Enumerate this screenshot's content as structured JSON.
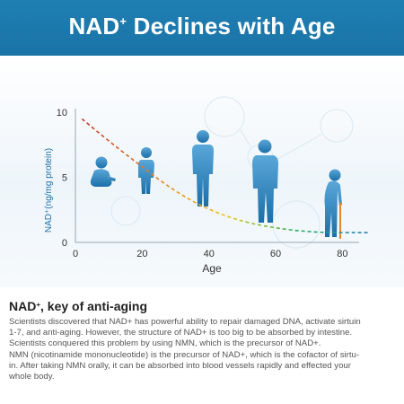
{
  "header": {
    "title_main": "NAD",
    "title_sup": "+",
    "title_rest": " Declines with Age"
  },
  "chart_data": {
    "type": "line",
    "title": "NAD+ Declines with Age",
    "xlabel": "Age",
    "ylabel": "NAD⁺(ng/mg protein)",
    "xlim": [
      0,
      85
    ],
    "ylim": [
      0,
      10.5
    ],
    "xticks": [
      0,
      20,
      40,
      60,
      80
    ],
    "yticks": [
      0,
      5,
      10
    ],
    "grid": false,
    "line_style": "dashed",
    "line_colors": [
      "#c0392b",
      "#e67e22",
      "#f1c40f",
      "#27ae60",
      "#2980b9"
    ],
    "x": [
      2,
      10,
      20,
      30,
      40,
      50,
      60,
      70,
      80,
      88
    ],
    "series": [
      {
        "values": [
          9.5,
          7.8,
          5.8,
          3.9,
          2.5,
          1.6,
          1.1,
          0.8,
          0.75,
          0.75
        ]
      }
    ],
    "illustrations": [
      "baby-silhouette",
      "child-silhouette",
      "adult-silhouette",
      "middle-aged-silhouette",
      "elderly-silhouette"
    ]
  },
  "section": {
    "title_main": "NAD",
    "title_sup": "+",
    "title_rest": ", key of anti-aging",
    "lines": [
      "Scientists discovered that NAD+ has powerful ability to repair damaged DNA, activate sirtuin",
      "1-7, and anti-aging. However, the structure of NAD+ is too big to be absorbed by intestine.",
      "Scientists conquered this problem by using NMN, which is the precursor of NAD+.",
      "NMN (nicotinamide mononucleotide) is the precursor of NAD+, which is the cofactor of sirtu-",
      "in. After taking NMN orally, it can be absorbed into blood vessels rapidly and effected your",
      "whole body."
    ]
  }
}
